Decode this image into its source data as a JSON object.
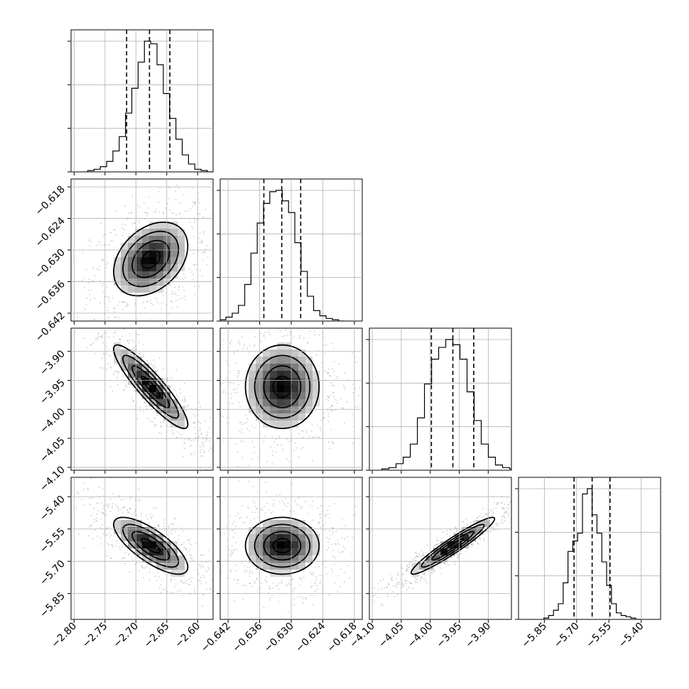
{
  "chart_data": {
    "type": "corner",
    "parameters": [
      {
        "ticks": [
          "−2.80",
          "−2.75",
          "−2.70",
          "−2.65",
          "−2.60"
        ],
        "tick_values": [
          -2.8,
          -2.75,
          -2.7,
          -2.65,
          -2.6
        ],
        "range": [
          -2.805,
          -2.575
        ],
        "mean": -2.676,
        "sd": 0.03,
        "quantiles": [
          -2.715,
          -2.678,
          -2.645
        ],
        "histogram": [
          1,
          2,
          4,
          8,
          16,
          27,
          45,
          64,
          84,
          100,
          98,
          82,
          60,
          41,
          25,
          13,
          6,
          2,
          1,
          0
        ]
      },
      {
        "ticks": [
          "−0.642",
          "−0.636",
          "−0.630",
          "−0.624",
          "−0.618"
        ],
        "tick_values": [
          -0.642,
          -0.636,
          -0.63,
          -0.624,
          -0.618
        ],
        "range": [
          -0.6435,
          -0.6165
        ],
        "mean": -0.6317,
        "sd": 0.0035,
        "quantiles": [
          -0.6352,
          -0.6318,
          -0.6282
        ],
        "histogram": [
          1,
          3,
          6,
          12,
          28,
          52,
          75,
          90,
          99,
          100,
          92,
          83,
          60,
          38,
          19,
          8,
          4,
          2,
          1,
          0
        ]
      },
      {
        "ticks": [
          "−4.10",
          "−4.05",
          "−4.00",
          "−3.95",
          "−3.90"
        ],
        "tick_values": [
          -4.1,
          -4.05,
          -4.0,
          -3.95,
          -3.9
        ],
        "range": [
          -4.105,
          -3.86
        ],
        "mean": -3.961,
        "sd": 0.036,
        "quantiles": [
          -3.998,
          -3.961,
          -3.925
        ],
        "histogram": [
          1,
          2,
          5,
          10,
          20,
          40,
          66,
          85,
          94,
          100,
          96,
          85,
          60,
          38,
          20,
          10,
          4,
          2,
          1,
          0
        ]
      },
      {
        "ticks": [
          "−5.85",
          "−5.70",
          "−5.55",
          "−5.40"
        ],
        "tick_values": [
          -5.85,
          -5.7,
          -5.55,
          -5.4
        ],
        "range": [
          -5.97,
          -5.31
        ],
        "mean": -5.628,
        "sd": 0.066,
        "quantiles": [
          -5.712,
          -5.628,
          -5.545
        ],
        "histogram": [
          1,
          3,
          7,
          12,
          28,
          52,
          60,
          66,
          96,
          100,
          80,
          66,
          44,
          26,
          12,
          5,
          3,
          2,
          1,
          0
        ]
      }
    ],
    "correlations": [
      [
        1.0,
        0.35,
        -0.9,
        -0.75
      ],
      [
        0.35,
        1.0,
        0.0,
        0.0
      ],
      [
        -0.9,
        0.0,
        1.0,
        0.95
      ],
      [
        -0.75,
        0.0,
        0.95,
        1.0
      ]
    ],
    "contour_levels_sigma": [
      0.5,
      1.0,
      1.5,
      2.0
    ],
    "grid": true,
    "histogram_bins": 20,
    "colors": {
      "ink": "#000000",
      "grid": "#b0b0b0",
      "scatter": "#8a8a8a"
    }
  }
}
